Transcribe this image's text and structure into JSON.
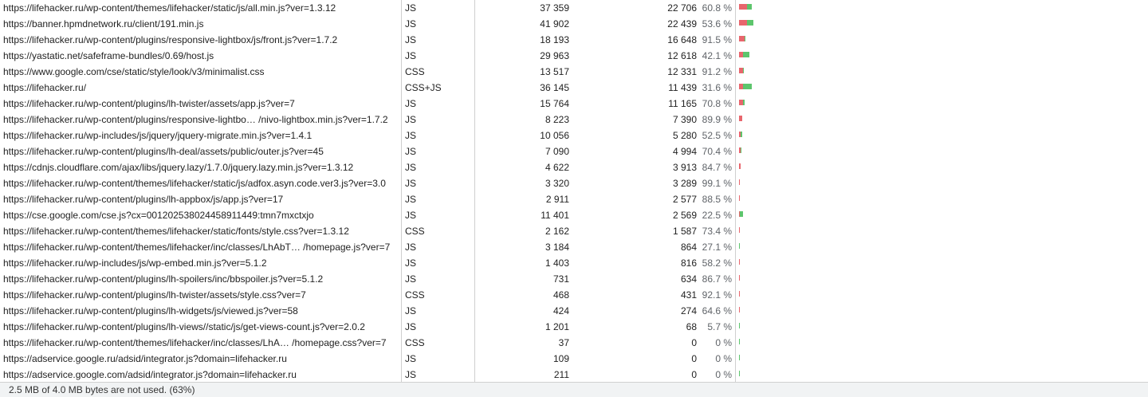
{
  "rows": [
    {
      "url": "https://lifehacker.ru/wp-content/themes/lifehacker/static/js/all.min.js?ver=1.3.12",
      "type": "JS",
      "total": "37 359",
      "unused": "22 706",
      "pct": "60.8 %",
      "unused_fraction": 0.608,
      "total_bytes": 37359
    },
    {
      "url": "https://banner.hpmdnetwork.ru/client/191.min.js",
      "type": "JS",
      "total": "41 902",
      "unused": "22 439",
      "pct": "53.6 %",
      "unused_fraction": 0.536,
      "total_bytes": 41902
    },
    {
      "url": "https://lifehacker.ru/wp-content/plugins/responsive-lightbox/js/front.js?ver=1.7.2",
      "type": "JS",
      "total": "18 193",
      "unused": "16 648",
      "pct": "91.5 %",
      "unused_fraction": 0.915,
      "total_bytes": 18193
    },
    {
      "url": "https://yastatic.net/safeframe-bundles/0.69/host.js",
      "type": "JS",
      "total": "29 963",
      "unused": "12 618",
      "pct": "42.1 %",
      "unused_fraction": 0.421,
      "total_bytes": 29963
    },
    {
      "url": "https://www.google.com/cse/static/style/look/v3/minimalist.css",
      "type": "CSS",
      "total": "13 517",
      "unused": "12 331",
      "pct": "91.2 %",
      "unused_fraction": 0.912,
      "total_bytes": 13517
    },
    {
      "url": "https://lifehacker.ru/",
      "type": "CSS+JS",
      "total": "36 145",
      "unused": "11 439",
      "pct": "31.6 %",
      "unused_fraction": 0.316,
      "total_bytes": 36145
    },
    {
      "url": "https://lifehacker.ru/wp-content/plugins/lh-twister/assets/app.js?ver=7",
      "type": "JS",
      "total": "15 764",
      "unused": "11 165",
      "pct": "70.8 %",
      "unused_fraction": 0.708,
      "total_bytes": 15764
    },
    {
      "url": "https://lifehacker.ru/wp-content/plugins/responsive-lightbo… /nivo-lightbox.min.js?ver=1.7.2",
      "type": "JS",
      "total": "8 223",
      "unused": "7 390",
      "pct": "89.9 %",
      "unused_fraction": 0.899,
      "total_bytes": 8223
    },
    {
      "url": "https://lifehacker.ru/wp-includes/js/jquery/jquery-migrate.min.js?ver=1.4.1",
      "type": "JS",
      "total": "10 056",
      "unused": "5 280",
      "pct": "52.5 %",
      "unused_fraction": 0.525,
      "total_bytes": 10056
    },
    {
      "url": "https://lifehacker.ru/wp-content/plugins/lh-deal/assets/public/outer.js?ver=45",
      "type": "JS",
      "total": "7 090",
      "unused": "4 994",
      "pct": "70.4 %",
      "unused_fraction": 0.704,
      "total_bytes": 7090
    },
    {
      "url": "https://cdnjs.cloudflare.com/ajax/libs/jquery.lazy/1.7.0/jquery.lazy.min.js?ver=1.3.12",
      "type": "JS",
      "total": "4 622",
      "unused": "3 913",
      "pct": "84.7 %",
      "unused_fraction": 0.847,
      "total_bytes": 4622
    },
    {
      "url": "https://lifehacker.ru/wp-content/themes/lifehacker/static/js/adfox.asyn.code.ver3.js?ver=3.0",
      "type": "JS",
      "total": "3 320",
      "unused": "3 289",
      "pct": "99.1 %",
      "unused_fraction": 0.991,
      "total_bytes": 3320
    },
    {
      "url": "https://lifehacker.ru/wp-content/plugins/lh-appbox/js/app.js?ver=17",
      "type": "JS",
      "total": "2 911",
      "unused": "2 577",
      "pct": "88.5 %",
      "unused_fraction": 0.885,
      "total_bytes": 2911
    },
    {
      "url": "https://cse.google.com/cse.js?cx=001202538024458911449:tmn7mxctxjo",
      "type": "JS",
      "total": "11 401",
      "unused": "2 569",
      "pct": "22.5 %",
      "unused_fraction": 0.225,
      "total_bytes": 11401
    },
    {
      "url": "https://lifehacker.ru/wp-content/themes/lifehacker/static/fonts/style.css?ver=1.3.12",
      "type": "CSS",
      "total": "2 162",
      "unused": "1 587",
      "pct": "73.4 %",
      "unused_fraction": 0.734,
      "total_bytes": 2162
    },
    {
      "url": "https://lifehacker.ru/wp-content/themes/lifehacker/inc/classes/LhAbT… /homepage.js?ver=7",
      "type": "JS",
      "total": "3 184",
      "unused": "864",
      "pct": "27.1 %",
      "unused_fraction": 0.271,
      "total_bytes": 3184
    },
    {
      "url": "https://lifehacker.ru/wp-includes/js/wp-embed.min.js?ver=5.1.2",
      "type": "JS",
      "total": "1 403",
      "unused": "816",
      "pct": "58.2 %",
      "unused_fraction": 0.582,
      "total_bytes": 1403
    },
    {
      "url": "https://lifehacker.ru/wp-content/plugins/lh-spoilers/inc/bbspoiler.js?ver=5.1.2",
      "type": "JS",
      "total": "731",
      "unused": "634",
      "pct": "86.7 %",
      "unused_fraction": 0.867,
      "total_bytes": 731
    },
    {
      "url": "https://lifehacker.ru/wp-content/plugins/lh-twister/assets/style.css?ver=7",
      "type": "CSS",
      "total": "468",
      "unused": "431",
      "pct": "92.1 %",
      "unused_fraction": 0.921,
      "total_bytes": 468
    },
    {
      "url": "https://lifehacker.ru/wp-content/plugins/lh-widgets/js/viewed.js?ver=58",
      "type": "JS",
      "total": "424",
      "unused": "274",
      "pct": "64.6 %",
      "unused_fraction": 0.646,
      "total_bytes": 424
    },
    {
      "url": "https://lifehacker.ru/wp-content/plugins/lh-views//static/js/get-views-count.js?ver=2.0.2",
      "type": "JS",
      "total": "1 201",
      "unused": "68",
      "pct": "5.7 %",
      "unused_fraction": 0.057,
      "total_bytes": 1201
    },
    {
      "url": "https://lifehacker.ru/wp-content/themes/lifehacker/inc/classes/LhA…  /homepage.css?ver=7",
      "type": "CSS",
      "total": "37",
      "unused": "0",
      "pct": "0 %",
      "unused_fraction": 0.0,
      "total_bytes": 37
    },
    {
      "url": "https://adservice.google.ru/adsid/integrator.js?domain=lifehacker.ru",
      "type": "JS",
      "total": "109",
      "unused": "0",
      "pct": "0 %",
      "unused_fraction": 0.0,
      "total_bytes": 109
    },
    {
      "url": "https://adservice.google.com/adsid/integrator.js?domain=lifehacker.ru",
      "type": "JS",
      "total": "211",
      "unused": "0",
      "pct": "0 %",
      "unused_fraction": 0.0,
      "total_bytes": 211
    }
  ],
  "colors": {
    "unused": "#e8666d",
    "used": "#5dc56c"
  },
  "status": {
    "text": "2.5 MB of 4.0 MB bytes are not used. (63%)"
  }
}
